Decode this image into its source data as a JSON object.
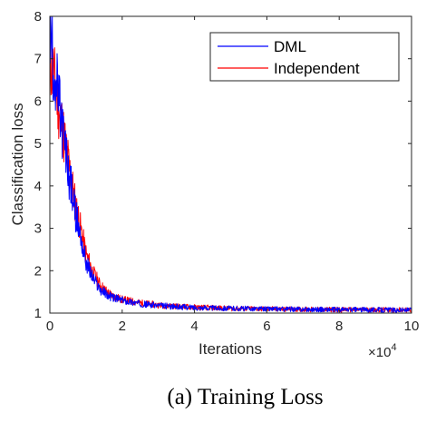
{
  "chart_data": {
    "type": "line",
    "xlabel": "Iterations",
    "ylabel": "Classification loss",
    "x_exponent_label": "×10",
    "x_exponent_power": "4",
    "xlim": [
      0,
      10
    ],
    "ylim": [
      1,
      8
    ],
    "x_ticks": [
      0,
      2,
      4,
      6,
      8,
      10
    ],
    "y_ticks": [
      1,
      2,
      3,
      4,
      5,
      6,
      7,
      8
    ],
    "grid": false,
    "legend_position": "top-right",
    "series": [
      {
        "name": "DML",
        "color": "#0000ff",
        "x": [
          0,
          0.1,
          0.2,
          0.3,
          0.4,
          0.5,
          0.6,
          0.7,
          0.8,
          0.9,
          1.0,
          1.2,
          1.4,
          1.6,
          1.8,
          2.0,
          2.5,
          3.0,
          3.5,
          4.0,
          5.0,
          6.0,
          7.0,
          8.0,
          9.0,
          10.0
        ],
        "y": [
          7.6,
          6.9,
          6.3,
          5.6,
          5.0,
          4.4,
          3.9,
          3.4,
          3.0,
          2.6,
          2.2,
          1.8,
          1.55,
          1.42,
          1.35,
          1.3,
          1.22,
          1.18,
          1.15,
          1.13,
          1.11,
          1.1,
          1.09,
          1.08,
          1.08,
          1.07
        ]
      },
      {
        "name": "Independent",
        "color": "#ff0000",
        "x": [
          0,
          0.1,
          0.2,
          0.3,
          0.4,
          0.5,
          0.6,
          0.7,
          0.8,
          0.9,
          1.0,
          1.2,
          1.4,
          1.6,
          1.8,
          2.0,
          2.5,
          3.0,
          3.5,
          4.0,
          5.0,
          6.0,
          7.0,
          8.0,
          9.0,
          10.0
        ],
        "y": [
          7.1,
          6.6,
          6.1,
          5.6,
          5.1,
          4.6,
          4.1,
          3.6,
          3.2,
          2.8,
          2.4,
          1.95,
          1.65,
          1.48,
          1.38,
          1.32,
          1.24,
          1.19,
          1.16,
          1.14,
          1.11,
          1.1,
          1.09,
          1.08,
          1.08,
          1.07
        ]
      }
    ]
  },
  "caption": "(a) Training Loss"
}
